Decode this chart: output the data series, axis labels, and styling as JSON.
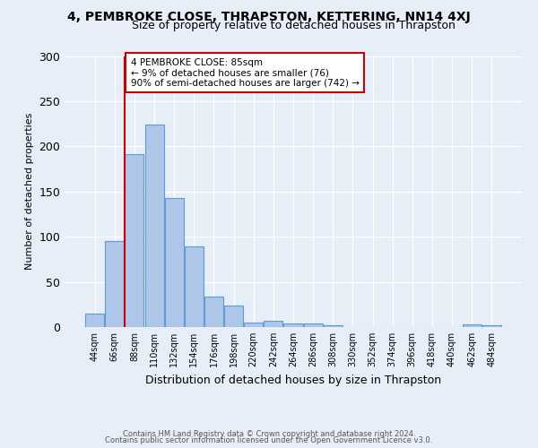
{
  "title": "4, PEMBROKE CLOSE, THRAPSTON, KETTERING, NN14 4XJ",
  "subtitle": "Size of property relative to detached houses in Thrapston",
  "xlabel": "Distribution of detached houses by size in Thrapston",
  "ylabel": "Number of detached properties",
  "footnote1": "Contains HM Land Registry data © Crown copyright and database right 2024.",
  "footnote2": "Contains public sector information licensed under the Open Government Licence v3.0.",
  "bin_labels": [
    "44sqm",
    "66sqm",
    "88sqm",
    "110sqm",
    "132sqm",
    "154sqm",
    "176sqm",
    "198sqm",
    "220sqm",
    "242sqm",
    "264sqm",
    "286sqm",
    "308sqm",
    "330sqm",
    "352sqm",
    "374sqm",
    "396sqm",
    "418sqm",
    "440sqm",
    "462sqm",
    "484sqm"
  ],
  "bar_values": [
    15,
    95,
    191,
    224,
    143,
    89,
    34,
    24,
    5,
    7,
    4,
    4,
    2,
    0,
    0,
    0,
    0,
    0,
    0,
    3,
    2
  ],
  "bar_color": "#aec6e8",
  "bar_edge_color": "#5a9ed6",
  "vline_color": "#cc0000",
  "annotation_text": "4 PEMBROKE CLOSE: 85sqm\n← 9% of detached houses are smaller (76)\n90% of semi-detached houses are larger (742) →",
  "annotation_box_color": "#ffffff",
  "annotation_box_edge": "#cc0000",
  "ylim": [
    0,
    300
  ],
  "yticks": [
    0,
    50,
    100,
    150,
    200,
    250,
    300
  ],
  "background_color": "#e8eef8",
  "axes_bg_color": "#e8eef8"
}
